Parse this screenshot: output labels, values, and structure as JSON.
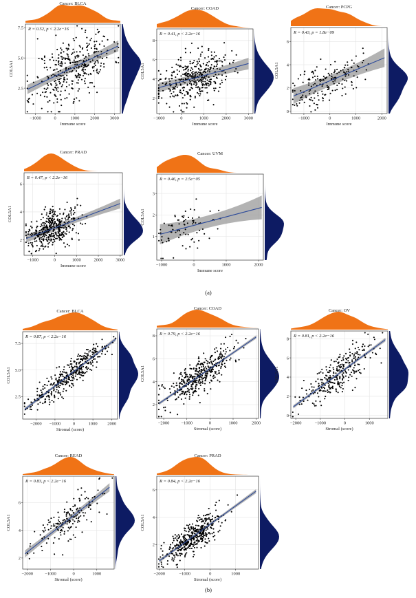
{
  "colors": {
    "top_density": "#f07316",
    "right_density": "#0d1b63",
    "regression_line": "#2c4a9a",
    "confidence_band": "#9a9a9a",
    "points": "#000000",
    "grid": "#e3e3e3",
    "frame": "#333333"
  },
  "subfigure_labels": [
    "(a)",
    "(b)"
  ],
  "chart_data": [
    {
      "type": "scatter",
      "group": "a",
      "title": "Cancer: BLCA",
      "stat": "R = 0.52,  p < 2.2e−16",
      "xlabel": "Immune score",
      "ylabel": "COL5A1",
      "xlim": [
        -1500,
        3300
      ],
      "ylim": [
        0.4,
        7.8
      ],
      "xticks": [
        -1000,
        0,
        1000,
        2000,
        3000
      ],
      "xticklabels": [
        "−1000",
        "0",
        "1000",
        "2000",
        "3000"
      ],
      "yticks": [
        2.5,
        5.0,
        7.5
      ],
      "yticklabels": [
        "2.5",
        "5.0",
        "7.5"
      ],
      "fit": {
        "x0": -1400,
        "y0": 2.4,
        "x1": 3200,
        "y1": 6.0
      },
      "band": [
        0.35,
        0.45
      ],
      "x_mean": 900,
      "x_sd": 1000,
      "noise": 1.3,
      "n": 380,
      "seed": 11,
      "grid": true,
      "marginals": [
        "top",
        "right"
      ]
    },
    {
      "type": "scatter",
      "group": "a",
      "title": "Cancer: COAD",
      "stat": "R = 0.41,  p < 2.2e−16",
      "xlabel": "Immune score",
      "ylabel": "COL5A1",
      "xlim": [
        -1100,
        3200
      ],
      "ylim": [
        0.4,
        9.2
      ],
      "xticks": [
        -1000,
        0,
        1000,
        2000,
        3000
      ],
      "xticklabels": [
        "−1000",
        "0",
        "1000",
        "2000",
        "3000"
      ],
      "yticks": [
        2,
        4,
        6,
        8
      ],
      "yticklabels": [
        "2",
        "4",
        "6",
        "8"
      ],
      "fit": {
        "x0": -1000,
        "y0": 3.1,
        "x1": 3000,
        "y1": 5.6
      },
      "band": [
        0.35,
        0.6
      ],
      "x_mean": 500,
      "x_sd": 800,
      "noise": 1.2,
      "n": 400,
      "seed": 23,
      "grid": true,
      "marginals": [
        "top",
        "right"
      ]
    },
    {
      "type": "scatter",
      "group": "a",
      "title": "Cancer: PCPG",
      "stat": "R = 0.43,  p = 1.8e−09",
      "xlabel": "Immune score",
      "ylabel": "COL5A1",
      "xlim": [
        -1500,
        2200
      ],
      "ylim": [
        -0.2,
        7.2
      ],
      "xticks": [
        -1000,
        0,
        1000,
        2000
      ],
      "xticklabels": [
        "−1000",
        "0",
        "1000",
        "2000"
      ],
      "yticks": [
        0,
        2,
        4,
        6
      ],
      "yticklabels": [
        "0",
        "2",
        "4",
        "6"
      ],
      "fit": {
        "x0": -1400,
        "y0": 1.3,
        "x1": 2100,
        "y1": 4.6
      },
      "band": [
        0.35,
        0.8
      ],
      "x_mean": -200,
      "x_sd": 700,
      "noise": 0.9,
      "n": 180,
      "seed": 37,
      "grid": true,
      "marginals": [
        "top",
        "right"
      ]
    },
    {
      "type": "scatter",
      "group": "a",
      "title": "Cancer: PRAD",
      "stat": "R = 0.47,  p < 2.2e−16",
      "xlabel": "Immune score",
      "ylabel": "COL5A1",
      "xlim": [
        -1400,
        3100
      ],
      "ylim": [
        0.9,
        6.8
      ],
      "xticks": [
        -1000,
        0,
        1000,
        2000,
        3000
      ],
      "xticklabels": [
        "−1000",
        "0",
        "1000",
        "2000",
        "3000"
      ],
      "yticks": [
        2,
        4,
        6
      ],
      "yticklabels": [
        "2",
        "4",
        "6"
      ],
      "fit": {
        "x0": -1300,
        "y0": 2.1,
        "x1": 3000,
        "y1": 4.6
      },
      "band": [
        0.12,
        0.35
      ],
      "x_mean": -100,
      "x_sd": 600,
      "noise": 0.65,
      "n": 420,
      "seed": 41,
      "grid": true,
      "marginals": [
        "top",
        "right"
      ]
    },
    {
      "type": "scatter",
      "group": "a",
      "title": "Cancer: UVM",
      "stat": "R = 0.46,  p = 2.5e−05",
      "xlabel": "Immune score",
      "ylabel": "COL5A1",
      "xlim": [
        -1150,
        2150
      ],
      "ylim": [
        -0.1,
        3.9
      ],
      "xticks": [
        -1000,
        0,
        1000,
        2000
      ],
      "xticklabels": [
        "−1000",
        "0",
        "1000",
        "2000"
      ],
      "yticks": [
        1,
        2,
        3
      ],
      "yticklabels": [
        "1",
        "2",
        "3"
      ],
      "fit": {
        "x0": -1050,
        "y0": 1.1,
        "x1": 2100,
        "y1": 2.35
      },
      "band": [
        0.12,
        0.55
      ],
      "x_mean": -300,
      "x_sd": 550,
      "noise": 0.55,
      "n": 80,
      "seed": 53,
      "grid": true,
      "marginals": [
        "top",
        "right"
      ]
    },
    {
      "type": "scatter",
      "group": "b",
      "title": "Cancer: BLCA",
      "stat": "R = 0.87,  p < 2.2e−16",
      "xlabel": "Stromal (score)",
      "ylabel": "COL5A1",
      "xlim": [
        -2700,
        2300
      ],
      "ylim": [
        0.4,
        8.6
      ],
      "xticks": [
        -2000,
        -1000,
        0,
        1000,
        2000
      ],
      "xticklabels": [
        "−2000",
        "−1000",
        "0",
        "1000",
        "2000"
      ],
      "yticks": [
        2.5,
        5.0,
        7.5
      ],
      "yticklabels": [
        "2.5",
        "5.0",
        "7.5"
      ],
      "fit": {
        "x0": -2600,
        "y0": 1.3,
        "x1": 2200,
        "y1": 7.9
      },
      "band": [
        0.12,
        0.18
      ],
      "x_mean": -200,
      "x_sd": 1000,
      "noise": 0.6,
      "n": 400,
      "seed": 61,
      "grid": true,
      "marginals": [
        "top",
        "right"
      ]
    },
    {
      "type": "scatter",
      "group": "b",
      "title": "Cancer: COAD",
      "stat": "R = 0.79,  p < 2.2e−16",
      "xlabel": "Stromal (score)",
      "ylabel": "COL5A1",
      "xlim": [
        -2300,
        2100
      ],
      "ylim": [
        0.8,
        8.6
      ],
      "xticks": [
        -2000,
        -1000,
        0,
        1000,
        2000
      ],
      "xticklabels": [
        "−2000",
        "−1000",
        "0",
        "1000",
        "2000"
      ],
      "yticks": [
        2,
        4,
        6,
        8
      ],
      "yticklabels": [
        "2",
        "4",
        "6",
        "8"
      ],
      "fit": {
        "x0": -2200,
        "y0": 2.1,
        "x1": 2000,
        "y1": 7.9
      },
      "band": [
        0.1,
        0.15
      ],
      "x_mean": -500,
      "x_sd": 750,
      "noise": 0.75,
      "n": 420,
      "seed": 71,
      "grid": true,
      "marginals": [
        "top",
        "right"
      ]
    },
    {
      "type": "scatter",
      "group": "b",
      "title": "Cancer: OV",
      "stat": "R = 0.81,  p < 2.2e−16",
      "xlabel": "Stromal (score)",
      "ylabel": "COL5A1",
      "xlim": [
        -2200,
        1750
      ],
      "ylim": [
        -0.3,
        8.8
      ],
      "xticks": [
        -2000,
        -1000,
        0,
        1000
      ],
      "xticklabels": [
        "−2000",
        "−1000",
        "0",
        "1000"
      ],
      "yticks": [
        0,
        2,
        4,
        6,
        8
      ],
      "yticklabels": [
        "0",
        "2",
        "4",
        "6",
        "8"
      ],
      "fit": {
        "x0": -2100,
        "y0": 0.9,
        "x1": 1650,
        "y1": 7.9
      },
      "band": [
        0.12,
        0.2
      ],
      "x_mean": -300,
      "x_sd": 750,
      "noise": 1.0,
      "n": 300,
      "seed": 83,
      "grid": true,
      "marginals": [
        "top",
        "right"
      ]
    },
    {
      "type": "scatter",
      "group": "b",
      "title": "Cancer: READ",
      "stat": "R = 0.83,  p < 2.2e−16",
      "xlabel": "Stromal (score)",
      "ylabel": "COL5A1",
      "xlim": [
        -2200,
        1750
      ],
      "ylim": [
        1.2,
        7.9
      ],
      "xticks": [
        -2000,
        -1000,
        0,
        1000
      ],
      "xticklabels": [
        "−2000",
        "−1000",
        "0",
        "1000"
      ],
      "yticks": [
        2,
        4,
        6
      ],
      "yticklabels": [
        "2",
        "4",
        "6"
      ],
      "fit": {
        "x0": -2100,
        "y0": 2.3,
        "x1": 1550,
        "y1": 7.1
      },
      "band": [
        0.15,
        0.3
      ],
      "x_mean": -400,
      "x_sd": 750,
      "noise": 0.75,
      "n": 170,
      "seed": 97,
      "grid": true,
      "marginals": [
        "top",
        "right"
      ]
    },
    {
      "type": "scatter",
      "group": "b",
      "title": "Cancer: PRAD",
      "stat": "R = 0.84,  p < 2.2e−16",
      "xlabel": "Stromal (score)",
      "ylabel": "COL5A1",
      "xlim": [
        -2100,
        1900
      ],
      "ylim": [
        0.2,
        7.0
      ],
      "xticks": [
        -2000,
        -1000,
        0,
        1000
      ],
      "xticklabels": [
        "−2000",
        "−1000",
        "0",
        "1000"
      ],
      "yticks": [
        2,
        4,
        6
      ],
      "yticklabels": [
        "2",
        "4",
        "6"
      ],
      "fit": {
        "x0": -2000,
        "y0": 0.8,
        "x1": 1800,
        "y1": 5.9
      },
      "band": [
        0.08,
        0.15
      ],
      "x_mean": -700,
      "x_sd": 550,
      "noise": 0.55,
      "n": 450,
      "seed": 101,
      "grid": true,
      "marginals": [
        "top",
        "right"
      ]
    }
  ]
}
